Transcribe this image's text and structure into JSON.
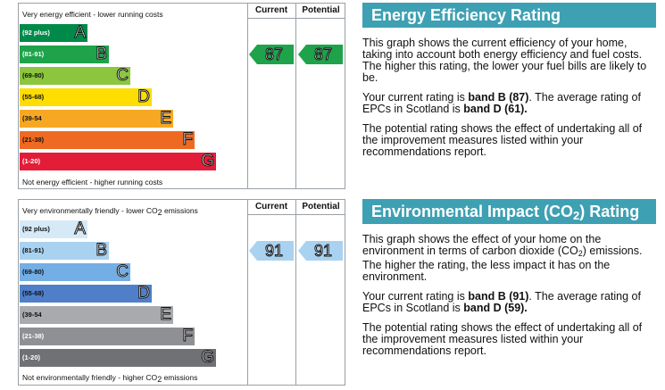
{
  "energy_chart": {
    "top_caption": "Very energy efficient - lower running costs",
    "bottom_caption": "Not energy efficient - higher running costs",
    "current_header": "Current",
    "potential_header": "Potential",
    "bands": [
      {
        "range": "(92 plus)",
        "letter": "A",
        "color": "#008a4a",
        "text_color": "#ffffff"
      },
      {
        "range": "(81-91)",
        "letter": "B",
        "color": "#1ea34a",
        "text_color": "#ffffff"
      },
      {
        "range": "(69-80)",
        "letter": "C",
        "color": "#8cc63f",
        "text_color": "#111111"
      },
      {
        "range": "(55-68)",
        "letter": "D",
        "color": "#fedd00",
        "text_color": "#111111"
      },
      {
        "range": "(39-54",
        "letter": "E",
        "color": "#f7a823",
        "text_color": "#111111"
      },
      {
        "range": "(21-38)",
        "letter": "F",
        "color": "#ee6a23",
        "text_color": "#111111"
      },
      {
        "range": "(1-20)",
        "letter": "G",
        "color": "#e31d38",
        "text_color": "#ffffff"
      }
    ],
    "current": {
      "value": "87",
      "band": 1,
      "color": "#1ea34a"
    },
    "potential": {
      "value": "87",
      "band": 1,
      "color": "#1ea34a"
    }
  },
  "env_chart": {
    "top_caption_pre": "Very environmentally friendly - lower CO",
    "top_caption_sub": "2",
    "top_caption_post": " emissions",
    "bottom_caption_pre": "Not environmentally friendly - higher CO",
    "bottom_caption_sub": "2",
    "bottom_caption_post": " emissions",
    "current_header": "Current",
    "potential_header": "Potential",
    "bands": [
      {
        "range": "(92 plus)",
        "letter": "A",
        "color": "#d6e9f7",
        "text_color": "#111111"
      },
      {
        "range": "(81-91)",
        "letter": "B",
        "color": "#a9d2f1",
        "text_color": "#111111"
      },
      {
        "range": "(69-80)",
        "letter": "C",
        "color": "#73aee5",
        "text_color": "#111111"
      },
      {
        "range": "(55-68)",
        "letter": "D",
        "color": "#4f7fc8",
        "text_color": "#111111"
      },
      {
        "range": "(39-54",
        "letter": "E",
        "color": "#a8aaad",
        "text_color": "#111111"
      },
      {
        "range": "(21-38)",
        "letter": "F",
        "color": "#8e9093",
        "text_color": "#ffffff"
      },
      {
        "range": "(1-20)",
        "letter": "G",
        "color": "#6f7174",
        "text_color": "#ffffff"
      }
    ],
    "current": {
      "value": "91",
      "band": 1,
      "color": "#a9d2f1"
    },
    "potential": {
      "value": "91",
      "band": 1,
      "color": "#a9d2f1"
    }
  },
  "energy_panel": {
    "title": "Energy Efficiency Rating",
    "p1": "This graph shows the current efficiency of your home, taking into account both energy efficiency and fuel costs. The higher this rating, the lower your fuel bills are likely to be.",
    "p2_pre": "Your current rating is ",
    "p2_bold1": "band B (87)",
    "p2_mid": ". The average rating of EPCs in Scotland is ",
    "p2_bold2": "band D (61).",
    "p3": "The potential rating shows the effect of undertaking all of the improvement measures listed within your recommendations report."
  },
  "env_panel": {
    "title_pre": "Environmental Impact (CO",
    "title_sub": "2",
    "title_post": ") Rating",
    "p1_pre": "This graph shows the effect of your home on the environment in terms of carbon dioxide (CO",
    "p1_sub": "2",
    "p1_post": ") emissions. The higher the rating, the less impact it has on the environment.",
    "p2_pre": "Your current rating is ",
    "p2_bold1": "band B (91)",
    "p2_mid": ". The average rating of EPCs in Scotland is ",
    "p2_bold2": "band D (59).",
    "p3": "The potential rating shows the effect of undertaking all of the improvement measures listed within your recommendations report."
  }
}
